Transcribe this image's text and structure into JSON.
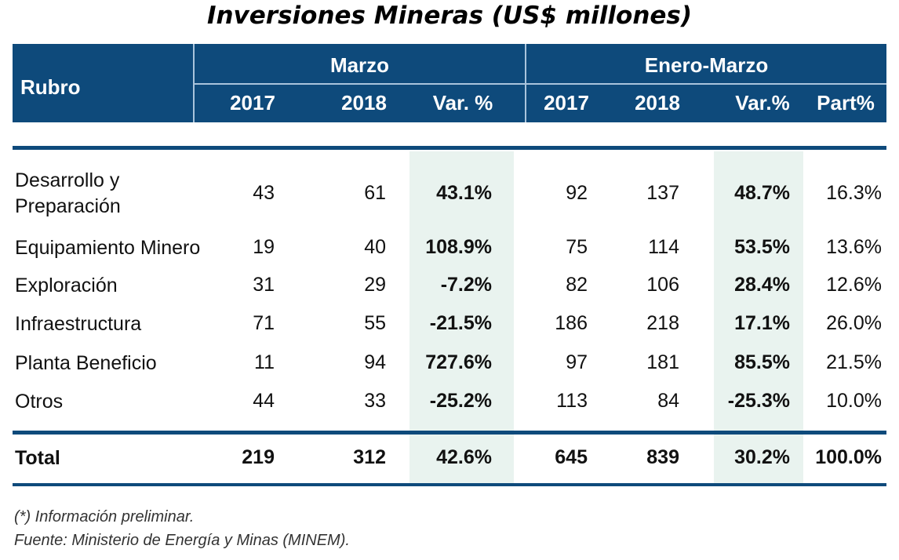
{
  "title": "Inversiones Mineras (US$ millones)",
  "header": {
    "rubro": "Rubro",
    "group1": "Marzo",
    "group2": "Enero-Marzo",
    "cols": [
      "2017",
      "2018",
      "Var. %",
      "2017",
      "2018",
      "Var.%",
      "Part%"
    ]
  },
  "rows": [
    {
      "label": "Desarrollo y Preparación",
      "values": [
        "43",
        "61",
        "43.1%",
        "92",
        "137",
        "48.7%",
        "16.3%"
      ]
    },
    {
      "label": "Equipamiento Minero",
      "values": [
        "19",
        "40",
        "108.9%",
        "75",
        "114",
        "53.5%",
        "13.6%"
      ]
    },
    {
      "label": "Exploración",
      "values": [
        "31",
        "29",
        "-7.2%",
        "82",
        "106",
        "28.4%",
        "12.6%"
      ]
    },
    {
      "label": "Infraestructura",
      "values": [
        "71",
        "55",
        "-21.5%",
        "186",
        "218",
        "17.1%",
        "26.0%"
      ]
    },
    {
      "label": "Planta Beneficio",
      "values": [
        "11",
        "94",
        "727.6%",
        "97",
        "181",
        "85.5%",
        "21.5%"
      ]
    },
    {
      "label": "Otros",
      "values": [
        "44",
        "33",
        "-25.2%",
        "113",
        "84",
        "-25.3%",
        "10.0%"
      ]
    }
  ],
  "total": {
    "label": "Total",
    "values": [
      "219",
      "312",
      "42.6%",
      "645",
      "839",
      "30.2%",
      "100.0%"
    ]
  },
  "footnotes": [
    "(*) Información preliminar.",
    "Fuente: Ministerio de Energía y Minas (MINEM)."
  ],
  "colors": {
    "header": "#0e4a7b",
    "shade": "#e9f3ef"
  },
  "chart_data": {
    "type": "table",
    "title": "Inversiones Mineras (US$ millones)"
  }
}
